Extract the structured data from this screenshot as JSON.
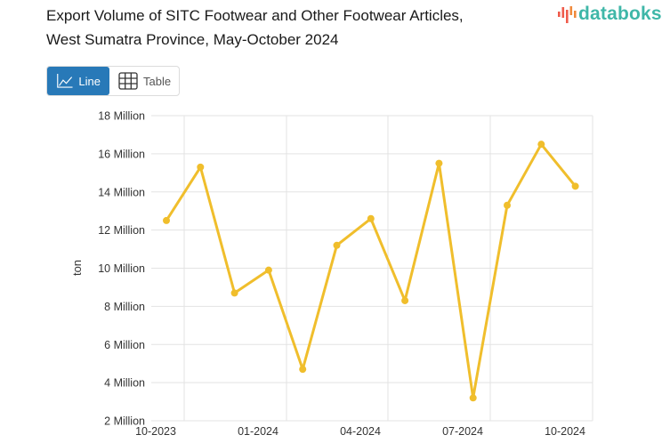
{
  "header": {
    "title_line1": "Export Volume of SITC Footwear and Other Footwear Articles,",
    "title_line2": "West Sumatra Province, May-October 2024",
    "logo_text": "databoks"
  },
  "view_toggle": {
    "line_label": "Line",
    "table_label": "Table",
    "active": "Line"
  },
  "colors": {
    "line": "#f0be2c",
    "accent": "#2879b8",
    "logo": "#3fb7a8",
    "grid": "#e3e3e3"
  },
  "chart_data": {
    "type": "line",
    "title": "Export Volume of SITC Footwear and Other Footwear Articles, West Sumatra Province, May-October 2024",
    "xlabel": "",
    "ylabel": "ton",
    "x": [
      "10-2023",
      "11-2023",
      "12-2023",
      "01-2024",
      "02-2024",
      "03-2024",
      "04-2024",
      "05-2024",
      "06-2024",
      "07-2024",
      "08-2024",
      "09-2024",
      "10-2024"
    ],
    "series": [
      {
        "name": "Export Volume",
        "values": [
          12500000,
          15300000,
          8700000,
          9900000,
          4700000,
          11200000,
          12600000,
          8300000,
          15500000,
          3200000,
          13300000,
          16500000,
          14300000
        ]
      }
    ],
    "x_tick_labels": [
      "10-2023",
      "01-2024",
      "04-2024",
      "07-2024",
      "10-2024"
    ],
    "y_tick_labels": [
      "18 Million",
      "16 Million",
      "14 Million",
      "12 Million",
      "10 Million",
      "8 Million",
      "6 Million",
      "4 Million",
      "2 Million"
    ],
    "ylim": [
      2000000,
      18000000
    ],
    "grid": true,
    "legend": "none"
  }
}
